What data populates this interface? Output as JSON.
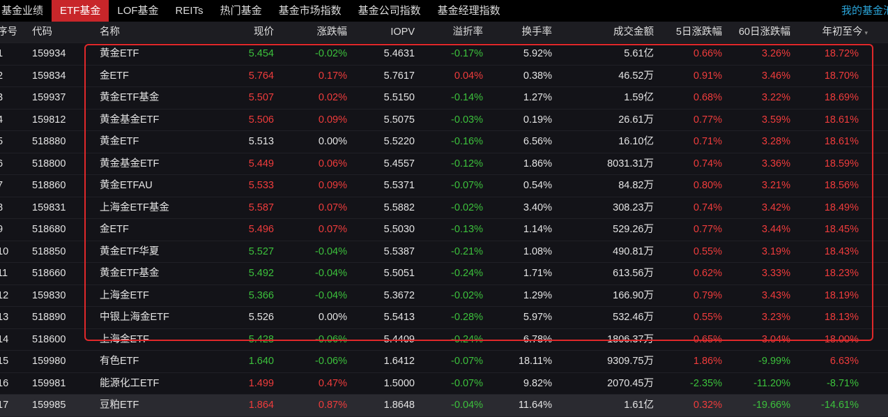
{
  "tabs": [
    "基金业绩",
    "ETF基金",
    "LOF基金",
    "REITs",
    "热门基金",
    "基金市场指数",
    "基金公司指数",
    "基金经理指数"
  ],
  "my_fund_link": "我的基金池",
  "columns": [
    "序号",
    "代码",
    "名称",
    "现价",
    "涨跌幅",
    "IOPV",
    "溢折率",
    "换手率",
    "成交金额",
    "5日涨跌幅",
    "60日涨跌幅",
    "年初至今"
  ],
  "sort_icon": "▾",
  "colors": {
    "up": "#f03c3c",
    "down": "#3cc13c",
    "accent": "#c8262a"
  },
  "rows": [
    [
      "1",
      "159934",
      "黄金ETF",
      "5.454",
      "-0.02%",
      "5.4631",
      "-0.17%",
      "5.92%",
      "5.61亿",
      "0.66%",
      "3.26%",
      "18.72%"
    ],
    [
      "2",
      "159834",
      "金ETF",
      "5.764",
      "0.17%",
      "5.7617",
      "0.04%",
      "0.38%",
      "46.52万",
      "0.91%",
      "3.46%",
      "18.70%"
    ],
    [
      "3",
      "159937",
      "黄金ETF基金",
      "5.507",
      "0.02%",
      "5.5150",
      "-0.14%",
      "1.27%",
      "1.59亿",
      "0.68%",
      "3.22%",
      "18.69%"
    ],
    [
      "4",
      "159812",
      "黄金基金ETF",
      "5.506",
      "0.09%",
      "5.5075",
      "-0.03%",
      "0.19%",
      "26.61万",
      "0.77%",
      "3.59%",
      "18.61%"
    ],
    [
      "5",
      "518880",
      "黄金ETF",
      "5.513",
      "0.00%",
      "5.5220",
      "-0.16%",
      "6.56%",
      "16.10亿",
      "0.71%",
      "3.28%",
      "18.61%"
    ],
    [
      "6",
      "518800",
      "黄金基金ETF",
      "5.449",
      "0.06%",
      "5.4557",
      "-0.12%",
      "1.86%",
      "8031.31万",
      "0.74%",
      "3.36%",
      "18.59%"
    ],
    [
      "7",
      "518860",
      "黄金ETFAU",
      "5.533",
      "0.09%",
      "5.5371",
      "-0.07%",
      "0.54%",
      "84.82万",
      "0.80%",
      "3.21%",
      "18.56%"
    ],
    [
      "8",
      "159831",
      "上海金ETF基金",
      "5.587",
      "0.07%",
      "5.5882",
      "-0.02%",
      "3.40%",
      "308.23万",
      "0.74%",
      "3.42%",
      "18.49%"
    ],
    [
      "9",
      "518680",
      "金ETF",
      "5.496",
      "0.07%",
      "5.5030",
      "-0.13%",
      "1.14%",
      "529.26万",
      "0.77%",
      "3.44%",
      "18.45%"
    ],
    [
      "10",
      "518850",
      "黄金ETF华夏",
      "5.527",
      "-0.04%",
      "5.5387",
      "-0.21%",
      "1.08%",
      "490.81万",
      "0.55%",
      "3.19%",
      "18.43%"
    ],
    [
      "11",
      "518660",
      "黄金ETF基金",
      "5.492",
      "-0.04%",
      "5.5051",
      "-0.24%",
      "1.71%",
      "613.56万",
      "0.62%",
      "3.33%",
      "18.23%"
    ],
    [
      "12",
      "159830",
      "上海金ETF",
      "5.366",
      "-0.04%",
      "5.3672",
      "-0.02%",
      "1.29%",
      "166.90万",
      "0.79%",
      "3.43%",
      "18.19%"
    ],
    [
      "13",
      "518890",
      "中银上海金ETF",
      "5.526",
      "0.00%",
      "5.5413",
      "-0.28%",
      "5.97%",
      "532.46万",
      "0.55%",
      "3.23%",
      "18.13%"
    ],
    [
      "14",
      "518600",
      "上海金ETF",
      "5.428",
      "-0.06%",
      "5.4409",
      "-0.24%",
      "6.78%",
      "1806.37万",
      "0.65%",
      "3.04%",
      "18.00%"
    ],
    [
      "15",
      "159980",
      "有色ETF",
      "1.640",
      "-0.06%",
      "1.6412",
      "-0.07%",
      "18.11%",
      "9309.75万",
      "1.86%",
      "-9.99%",
      "6.63%"
    ],
    [
      "16",
      "159981",
      "能源化工ETF",
      "1.499",
      "0.47%",
      "1.5000",
      "-0.07%",
      "9.82%",
      "2070.45万",
      "-2.35%",
      "-11.20%",
      "-8.71%"
    ],
    [
      "17",
      "159985",
      "豆粕ETF",
      "1.864",
      "0.87%",
      "1.8648",
      "-0.04%",
      "11.64%",
      "1.61亿",
      "0.32%",
      "-19.66%",
      "-14.61%"
    ]
  ]
}
